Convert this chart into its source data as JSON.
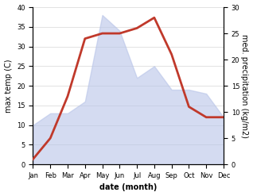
{
  "months": [
    "Jan",
    "Feb",
    "Mar",
    "Apr",
    "May",
    "Jun",
    "Jul",
    "Aug",
    "Sep",
    "Oct",
    "Nov",
    "Dec"
  ],
  "temperature": [
    10,
    13,
    13,
    16,
    38,
    34,
    22,
    25,
    19,
    19,
    18,
    12
  ],
  "precipitation": [
    1,
    5,
    13,
    24,
    25,
    25,
    26,
    28,
    21,
    11,
    9,
    9
  ],
  "temp_fill_color": "#b8c4e8",
  "temp_fill_alpha": 0.6,
  "precip_color": "#c0392b",
  "temp_ylim": [
    0,
    40
  ],
  "precip_ylim": [
    0,
    30
  ],
  "xlabel": "date (month)",
  "ylabel_left": "max temp (C)",
  "ylabel_right": "med. precipitation (kg/m2)",
  "background_color": "#ffffff",
  "plot_bg_color": "#ffffff",
  "ylabel_right_rotation": 270,
  "ylabel_right_labelpad": 8,
  "title_fontsize": 7,
  "tick_fontsize": 6,
  "xlabel_fontsize": 7,
  "ylabel_fontsize": 7,
  "precip_linewidth": 2.0
}
